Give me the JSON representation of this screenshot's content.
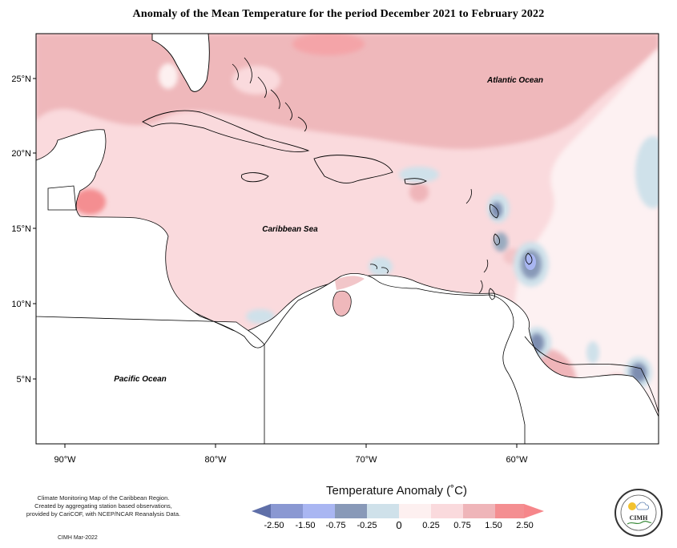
{
  "title": "Anomaly of the Mean Temperature for the period December 2021 to February 2022",
  "map": {
    "lat_ticks": [
      "25°N",
      "20°N",
      "15°N",
      "10°N",
      "5°N"
    ],
    "lon_ticks": [
      "90°W",
      "80°W",
      "70°W",
      "60°W"
    ],
    "places": [
      "Atlantic Ocean",
      "Caribbean Sea",
      "Pacific Ocean"
    ]
  },
  "legend": {
    "title": "Temperature Anomaly (˚C)",
    "labels": [
      "-2.50",
      "-1.50",
      "-0.75",
      "-0.25",
      "0",
      "0.25",
      "0.75",
      "1.50",
      "2.50"
    ],
    "colors": [
      "#5f6fa8",
      "#8a98d2",
      "#a9b6f2",
      "#8899b8",
      "#cfe1ea",
      "#fdf0f0",
      "#fadadd",
      "#efb5b9",
      "#f48e91",
      "#f6868a"
    ]
  },
  "credit": {
    "line1": "Climate Monitoring Map of the Caribbean Region.",
    "line2": "Created by aggregating station based observations,",
    "line3": "provided by CariCOF, with NCEP/NCAR Reanalysis Data.",
    "date": "CIMH Mar-2022"
  },
  "logo": {
    "text": "CIMH"
  }
}
